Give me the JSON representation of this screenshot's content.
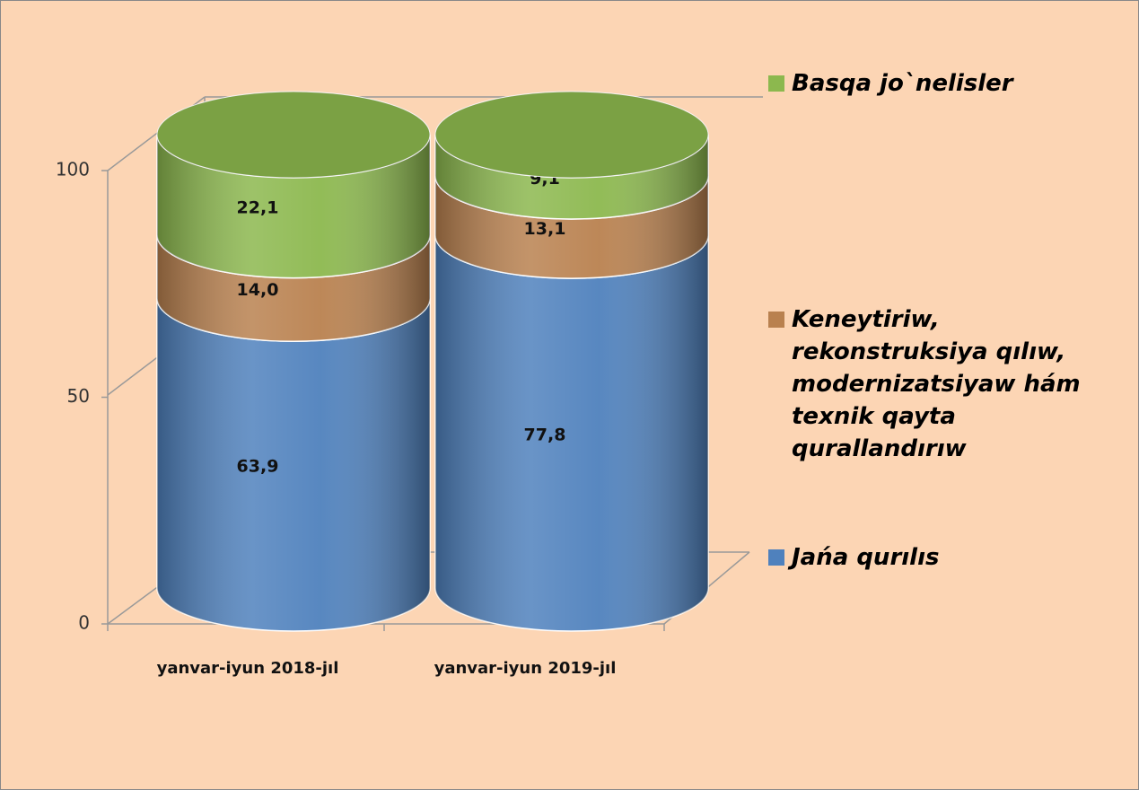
{
  "chart_data": {
    "type": "bar3d-stacked",
    "categories": [
      "yanvar-iyun 2018-jıl",
      "yanvar-iyun 2019-jıl"
    ],
    "series": [
      {
        "name": "Jańa qurılıs",
        "color": "#4f81bd",
        "values": [
          63.9,
          77.8
        ],
        "value_labels": [
          "63,9",
          "77,8"
        ]
      },
      {
        "name": "Keneytiriw, rekonstruksiya qılıw, modernizatsiyaw hám texnik qayta qurallandırıw",
        "color": "#b9814f",
        "values": [
          14.0,
          13.1
        ],
        "value_labels": [
          "14,0",
          "13,1"
        ]
      },
      {
        "name": "Basqa jo`nelisler",
        "color": "#8cb84e",
        "values": [
          22.1,
          9.1
        ],
        "value_labels": [
          "22,1",
          "9,1"
        ]
      }
    ],
    "ylim": [
      0,
      100
    ],
    "yticks": [
      0,
      50,
      100
    ],
    "legend": "right"
  }
}
